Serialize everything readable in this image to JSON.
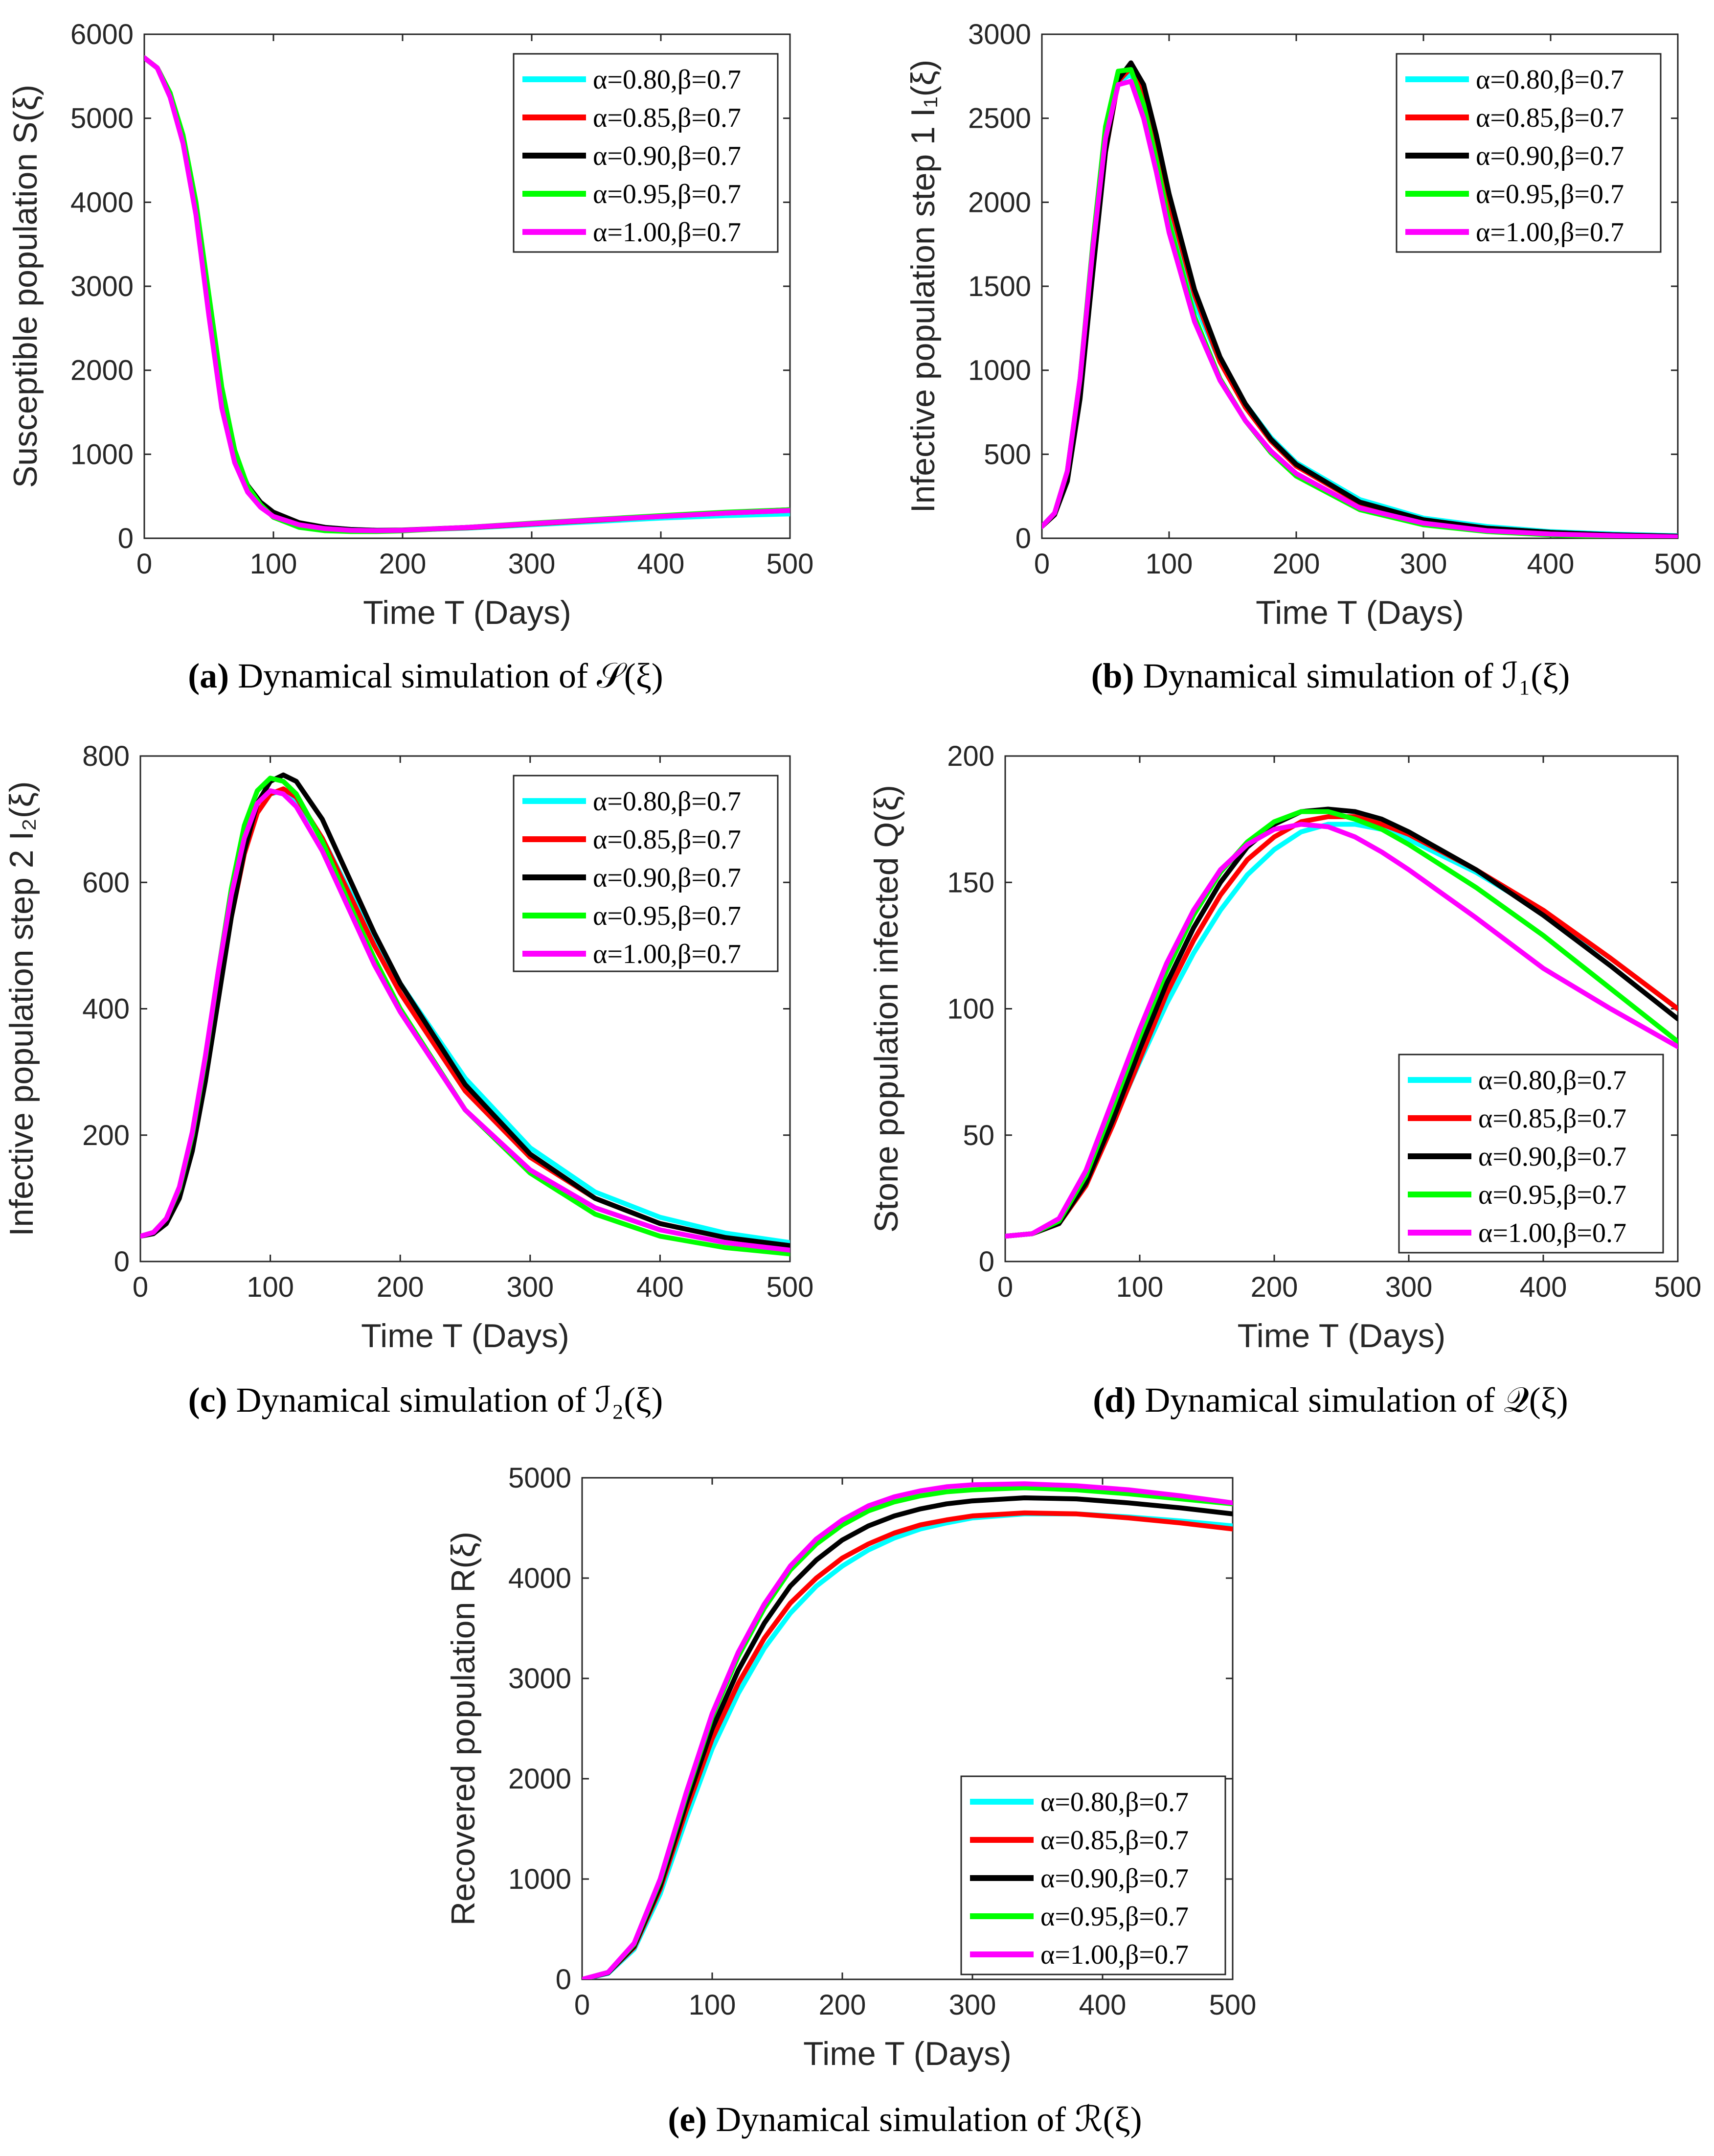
{
  "legend_labels": [
    "α=0.80,β=0.7",
    "α=0.85,β=0.7",
    "α=0.90,β=0.7",
    "α=0.95,β=0.7",
    "α=1.00,β=0.7"
  ],
  "series_colors": [
    "#00ffff",
    "#ff0000",
    "#000000",
    "#00ff00",
    "#ff00ff"
  ],
  "chart_data": [
    {
      "id": "a",
      "type": "line",
      "caption_letter": "(a)",
      "caption_text": "Dynamical simulation of 𝒮(ξ)",
      "xlabel": "Time T (Days)",
      "ylabel": "Susceptible population S(ξ)",
      "xlim": [
        0,
        500
      ],
      "ylim": [
        0,
        6000
      ],
      "xticks": [
        0,
        100,
        200,
        300,
        400,
        500
      ],
      "yticks": [
        0,
        1000,
        2000,
        3000,
        4000,
        5000,
        6000
      ],
      "legend_position": "top-right",
      "x": [
        0,
        10,
        20,
        30,
        40,
        50,
        60,
        70,
        80,
        90,
        100,
        120,
        140,
        160,
        180,
        200,
        250,
        300,
        350,
        400,
        450,
        500
      ],
      "series": [
        {
          "name": "α=0.80,β=0.7",
          "values": [
            5720,
            5600,
            5300,
            4750,
            3900,
            2700,
            1600,
            950,
            600,
            420,
            300,
            180,
            130,
            105,
            95,
            95,
            120,
            160,
            200,
            240,
            270,
            290
          ]
        },
        {
          "name": "α=0.85,β=0.7",
          "values": [
            5720,
            5600,
            5300,
            4750,
            3950,
            2800,
            1700,
            1000,
            620,
            420,
            300,
            180,
            125,
            100,
            92,
            93,
            125,
            170,
            215,
            260,
            300,
            330
          ]
        },
        {
          "name": "α=0.90,β=0.7",
          "values": [
            5720,
            5600,
            5300,
            4750,
            3950,
            2800,
            1700,
            1000,
            630,
            430,
            310,
            185,
            130,
            105,
            95,
            97,
            130,
            175,
            220,
            265,
            305,
            340
          ]
        },
        {
          "name": "α=0.95,β=0.7",
          "values": [
            5720,
            5600,
            5300,
            4800,
            4000,
            2900,
            1800,
            1050,
            620,
            400,
            250,
            130,
            90,
            80,
            80,
            88,
            130,
            180,
            225,
            270,
            310,
            340
          ]
        },
        {
          "name": "α=1.00,β=0.7",
          "values": [
            5720,
            5600,
            5250,
            4700,
            3850,
            2650,
            1550,
            900,
            550,
            370,
            260,
            160,
            115,
            95,
            90,
            95,
            130,
            175,
            220,
            260,
            300,
            330
          ]
        }
      ]
    },
    {
      "id": "b",
      "type": "line",
      "caption_letter": "(b)",
      "caption_text": "Dynamical simulation of ℐ₁(ξ)",
      "xlabel": "Time T (Days)",
      "ylabel": "Infective population step 1  I₁(ξ)",
      "xlim": [
        0,
        500
      ],
      "ylim": [
        0,
        3000
      ],
      "xticks": [
        0,
        100,
        200,
        300,
        400,
        500
      ],
      "yticks": [
        0,
        500,
        1000,
        1500,
        2000,
        2500,
        3000
      ],
      "legend_position": "top-right",
      "x": [
        0,
        10,
        20,
        30,
        40,
        50,
        60,
        70,
        80,
        90,
        100,
        120,
        140,
        160,
        180,
        200,
        250,
        300,
        350,
        400,
        450,
        500
      ],
      "series": [
        {
          "name": "α=0.80,β=0.7",
          "values": [
            70,
            150,
            380,
            900,
            1650,
            2350,
            2720,
            2760,
            2600,
            2300,
            1950,
            1400,
            1050,
            800,
            600,
            450,
            230,
            120,
            70,
            40,
            25,
            15
          ]
        },
        {
          "name": "α=0.85,β=0.7",
          "values": [
            70,
            140,
            350,
            850,
            1600,
            2300,
            2720,
            2800,
            2650,
            2350,
            2000,
            1450,
            1050,
            780,
            580,
            430,
            210,
            110,
            60,
            35,
            20,
            12
          ]
        },
        {
          "name": "α=0.90,β=0.7",
          "values": [
            70,
            140,
            340,
            830,
            1580,
            2300,
            2730,
            2830,
            2700,
            2400,
            2050,
            1480,
            1080,
            800,
            590,
            440,
            215,
            110,
            60,
            35,
            20,
            12
          ]
        },
        {
          "name": "α=0.95,β=0.7",
          "values": [
            70,
            150,
            400,
            950,
            1750,
            2450,
            2780,
            2790,
            2580,
            2250,
            1880,
            1320,
            950,
            700,
            510,
            370,
            170,
            80,
            40,
            20,
            10,
            5
          ]
        },
        {
          "name": "α=1.00,β=0.7",
          "values": [
            70,
            150,
            400,
            950,
            1720,
            2380,
            2700,
            2720,
            2500,
            2180,
            1820,
            1290,
            940,
            700,
            520,
            385,
            180,
            90,
            45,
            25,
            15,
            8
          ]
        }
      ]
    },
    {
      "id": "c",
      "type": "line",
      "caption_letter": "(c)",
      "caption_text": "Dynamical simulation of ℐ₂(ξ)",
      "xlabel": "Time T (Days)",
      "ylabel": "Infective population step 2  I₂(ξ)",
      "xlim": [
        0,
        500
      ],
      "ylim": [
        0,
        800
      ],
      "xticks": [
        0,
        100,
        200,
        300,
        400,
        500
      ],
      "yticks": [
        0,
        200,
        400,
        600,
        800
      ],
      "legend_position": "top-right",
      "x": [
        0,
        10,
        20,
        30,
        40,
        50,
        60,
        70,
        80,
        90,
        100,
        110,
        120,
        140,
        160,
        180,
        200,
        250,
        300,
        350,
        400,
        450,
        500
      ],
      "series": [
        {
          "name": "α=0.80,β=0.7",
          "values": [
            40,
            45,
            65,
            110,
            190,
            300,
            430,
            550,
            650,
            710,
            740,
            745,
            730,
            670,
            590,
            510,
            440,
            290,
            180,
            110,
            70,
            45,
            30
          ]
        },
        {
          "name": "α=0.85,β=0.7",
          "values": [
            40,
            45,
            62,
            105,
            180,
            290,
            420,
            545,
            645,
            710,
            740,
            748,
            735,
            670,
            585,
            500,
            425,
            270,
            165,
            100,
            60,
            38,
            25
          ]
        },
        {
          "name": "α=0.90,β=0.7",
          "values": [
            40,
            44,
            60,
            100,
            175,
            285,
            415,
            545,
            650,
            725,
            760,
            770,
            760,
            700,
            610,
            520,
            440,
            280,
            170,
            100,
            60,
            38,
            25
          ]
        },
        {
          "name": "α=0.95,β=0.7",
          "values": [
            40,
            46,
            68,
            115,
            200,
            320,
            460,
            590,
            690,
            745,
            765,
            760,
            740,
            665,
            570,
            480,
            400,
            240,
            140,
            75,
            40,
            22,
            12
          ]
        },
        {
          "name": "α=1.00,β=0.7",
          "values": [
            40,
            46,
            68,
            118,
            205,
            325,
            460,
            580,
            670,
            725,
            745,
            740,
            720,
            650,
            560,
            470,
            395,
            240,
            145,
            85,
            50,
            30,
            18
          ]
        }
      ]
    },
    {
      "id": "d",
      "type": "line",
      "caption_letter": "(d)",
      "caption_text": "Dynamical simulation of 𝒬(ξ)",
      "xlabel": "Time T (Days)",
      "ylabel": "Stone population infected  Q(ξ)",
      "xlim": [
        0,
        500
      ],
      "ylim": [
        0,
        200
      ],
      "xticks": [
        0,
        100,
        200,
        300,
        400,
        500
      ],
      "yticks": [
        0,
        50,
        100,
        150,
        200
      ],
      "legend_position": "bottom-right",
      "x": [
        0,
        20,
        40,
        60,
        80,
        100,
        120,
        140,
        160,
        180,
        200,
        220,
        240,
        260,
        280,
        300,
        350,
        400,
        450,
        500
      ],
      "series": [
        {
          "name": "α=0.80,β=0.7",
          "values": [
            10,
            11,
            16,
            32,
            55,
            79,
            102,
            122,
            139,
            153,
            163,
            170,
            173,
            173,
            171,
            167,
            154,
            138,
            120,
            100
          ]
        },
        {
          "name": "α=0.85,β=0.7",
          "values": [
            10,
            11,
            15,
            30,
            54,
            80,
            106,
            127,
            145,
            159,
            168,
            174,
            176,
            176,
            173,
            169,
            155,
            139,
            120,
            100
          ]
        },
        {
          "name": "α=0.90,β=0.7",
          "values": [
            10,
            11,
            15,
            31,
            56,
            84,
            110,
            132,
            150,
            164,
            173,
            178,
            179,
            178,
            175,
            170,
            155,
            137,
            117,
            96
          ]
        },
        {
          "name": "α=0.95,β=0.7",
          "values": [
            10,
            11,
            16,
            34,
            61,
            89,
            115,
            137,
            154,
            166,
            174,
            178,
            178,
            175,
            171,
            165,
            148,
            129,
            108,
            87
          ]
        },
        {
          "name": "α=1.00,β=0.7",
          "values": [
            10,
            11,
            17,
            36,
            64,
            92,
            118,
            139,
            155,
            165,
            171,
            173,
            172,
            168,
            162,
            155,
            136,
            116,
            100,
            85
          ]
        }
      ]
    },
    {
      "id": "e",
      "type": "line",
      "caption_letter": "(e)",
      "caption_text": "Dynamical simulation of ℛ(ξ)",
      "xlabel": "Time T (Days)",
      "ylabel": "Recovered population R(ξ)",
      "xlim": [
        0,
        500
      ],
      "ylim": [
        0,
        5000
      ],
      "xticks": [
        0,
        100,
        200,
        300,
        400,
        500
      ],
      "yticks": [
        0,
        1000,
        2000,
        3000,
        4000,
        5000
      ],
      "legend_position": "bottom-right",
      "x": [
        0,
        20,
        40,
        60,
        80,
        100,
        120,
        140,
        160,
        180,
        200,
        220,
        240,
        260,
        280,
        300,
        340,
        380,
        420,
        460,
        500
      ],
      "series": [
        {
          "name": "α=0.80,β=0.7",
          "values": [
            0,
            60,
            300,
            850,
            1600,
            2300,
            2850,
            3300,
            3650,
            3920,
            4120,
            4280,
            4400,
            4490,
            4550,
            4600,
            4640,
            4640,
            4610,
            4570,
            4520
          ]
        },
        {
          "name": "α=0.85,β=0.7",
          "values": [
            0,
            65,
            320,
            900,
            1680,
            2400,
            2950,
            3400,
            3750,
            4000,
            4200,
            4340,
            4450,
            4530,
            4580,
            4620,
            4650,
            4640,
            4600,
            4550,
            4490
          ]
        },
        {
          "name": "α=0.90,β=0.7",
          "values": [
            0,
            65,
            330,
            930,
            1750,
            2500,
            3080,
            3550,
            3920,
            4180,
            4380,
            4520,
            4620,
            4690,
            4740,
            4770,
            4800,
            4790,
            4750,
            4700,
            4640
          ]
        },
        {
          "name": "α=0.95,β=0.7",
          "values": [
            0,
            70,
            350,
            980,
            1830,
            2620,
            3220,
            3700,
            4080,
            4340,
            4530,
            4670,
            4760,
            4820,
            4860,
            4880,
            4900,
            4880,
            4840,
            4790,
            4740
          ]
        },
        {
          "name": "α=1.00,β=0.7",
          "values": [
            0,
            70,
            360,
            1000,
            1860,
            2650,
            3260,
            3740,
            4120,
            4390,
            4580,
            4720,
            4810,
            4870,
            4910,
            4930,
            4940,
            4920,
            4880,
            4820,
            4750
          ]
        }
      ]
    }
  ]
}
